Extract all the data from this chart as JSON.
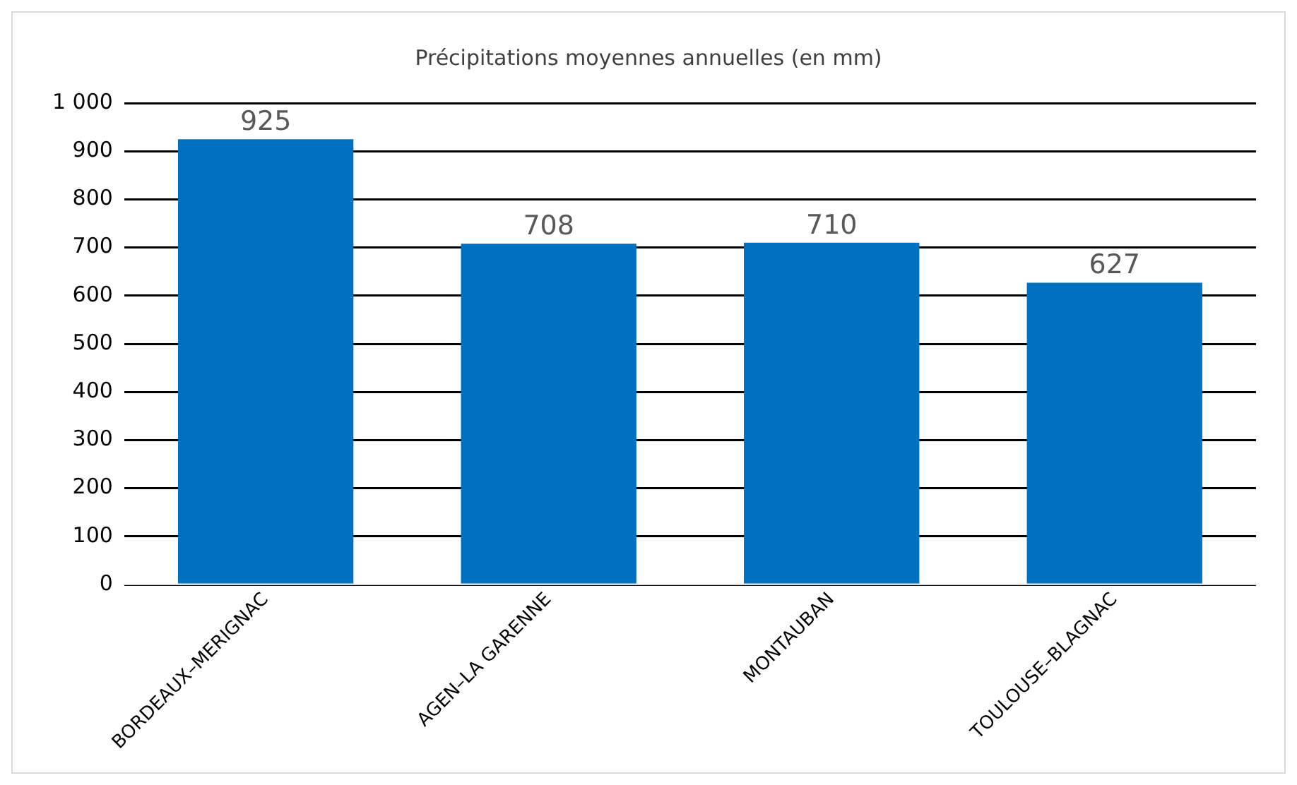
{
  "chart_data": {
    "type": "bar",
    "title": "Précipitations moyennes annuelles (en mm)",
    "categories": [
      "BORDEAUX–MERIGNAC",
      "AGEN–LA GARENNE",
      "MONTAUBAN",
      "TOULOUSE–BLAGNAC"
    ],
    "values": [
      925,
      708,
      710,
      627
    ],
    "color": "#0070c0",
    "ylim": [
      0,
      1000
    ],
    "yticks": [
      0,
      100,
      200,
      300,
      400,
      500,
      600,
      700,
      800,
      900,
      {
        "value": 1000,
        "label": "1 000"
      }
    ],
    "grid": "y",
    "data_labels": true,
    "legend": false
  }
}
